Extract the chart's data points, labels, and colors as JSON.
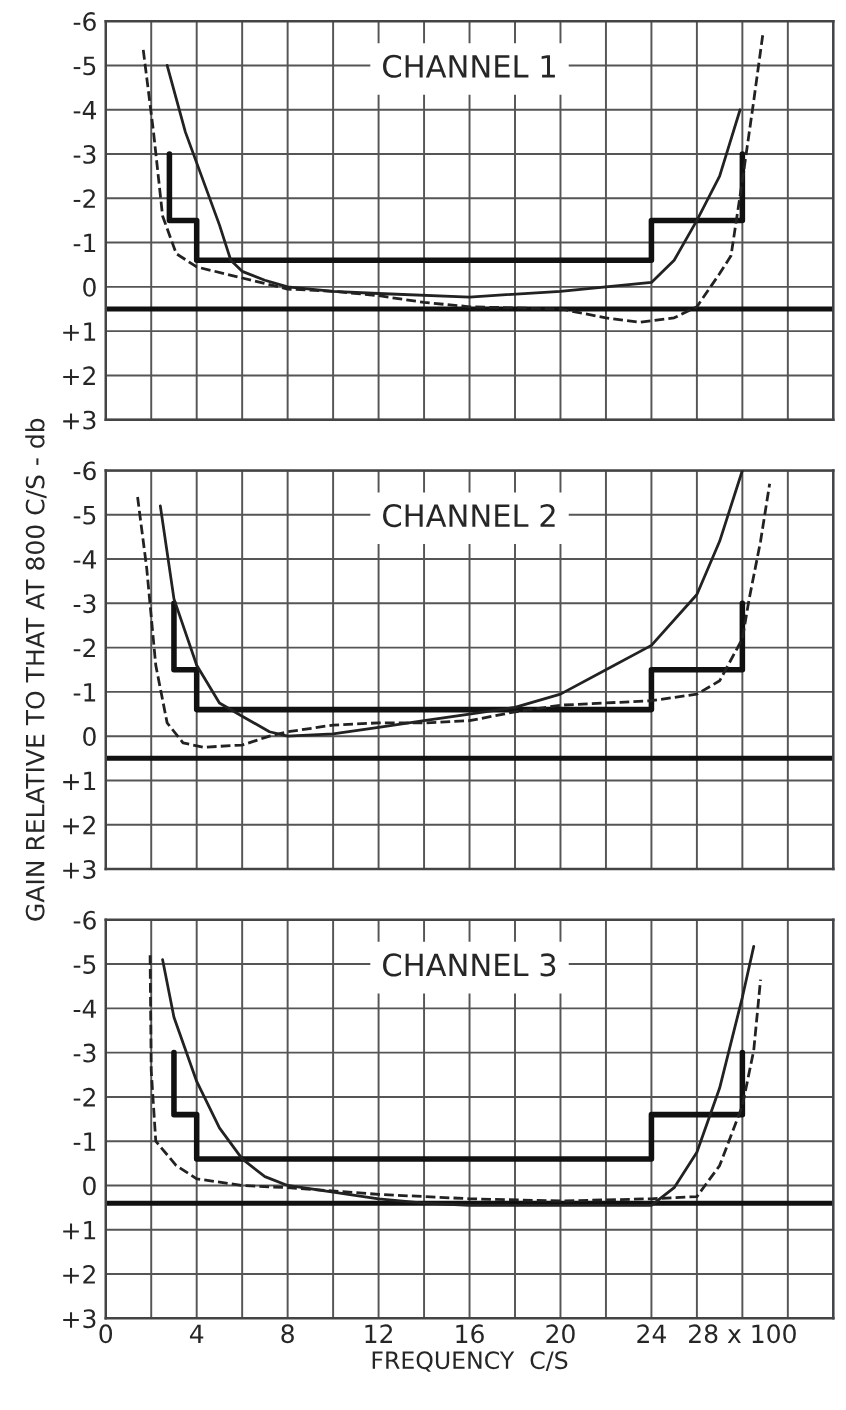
{
  "chart_data": [
    {
      "type": "line",
      "title": "CHANNEL 1",
      "xlim": [
        0,
        32
      ],
      "ylim": [
        3,
        -6
      ],
      "xticks": [
        {
          "value": 0,
          "label": null
        },
        {
          "value": 2,
          "label": null
        },
        {
          "value": 4,
          "label": null
        },
        {
          "value": 6,
          "label": null
        },
        {
          "value": 8,
          "label": null
        },
        {
          "value": 10,
          "label": null
        },
        {
          "value": 12,
          "label": null
        },
        {
          "value": 14,
          "label": null
        },
        {
          "value": 16,
          "label": null
        },
        {
          "value": 18,
          "label": null
        },
        {
          "value": 20,
          "label": null
        },
        {
          "value": 22,
          "label": null
        },
        {
          "value": 24,
          "label": null
        },
        {
          "value": 26,
          "label": null
        },
        {
          "value": 28,
          "label": null
        },
        {
          "value": 30,
          "label": null
        },
        {
          "value": 32,
          "label": null
        }
      ],
      "yticks": [
        -6,
        -5,
        -4,
        -3,
        -2,
        -1,
        0,
        {
          "value": 1,
          "label": "+1"
        },
        {
          "value": 2,
          "label": "+2"
        },
        {
          "value": 3,
          "label": "+3"
        }
      ],
      "grid": true,
      "tick_labels": "y",
      "ref_lines": [
        {
          "axis": "y",
          "value": 0.5,
          "color": "#111111"
        }
      ],
      "series": [
        {
          "type": "step",
          "color": "#111111",
          "line_style": "solid",
          "x": [
            2.8,
            2.8,
            4,
            24,
            28
          ],
          "values": [
            -3,
            -1.5,
            -0.6,
            -1.5,
            -3
          ]
        },
        {
          "color": "#222222",
          "line_style": "solid",
          "x": [
            2.7,
            3.5,
            4,
            5,
            5.5,
            6,
            7,
            8,
            10,
            12,
            16,
            20,
            22,
            24,
            25,
            26,
            27,
            27.9
          ],
          "values": [
            -5,
            -3.5,
            -2.8,
            -1.4,
            -0.6,
            -0.35,
            -0.15,
            0,
            0.1,
            0.15,
            0.23,
            0.1,
            0,
            -0.1,
            -0.6,
            -1.5,
            -2.5,
            -4
          ]
        },
        {
          "color": "#222222",
          "line_style": "dashed",
          "x": [
            1.65,
            2.1,
            2.5,
            3.1,
            4,
            6,
            8,
            10,
            12,
            14,
            16,
            20,
            22,
            23.5,
            25,
            26,
            27,
            27.5,
            28,
            28.5,
            28.9
          ],
          "values": [
            -5.35,
            -3.5,
            -1.6,
            -0.75,
            -0.45,
            -0.2,
            0.05,
            0.1,
            0.2,
            0.35,
            0.45,
            0.5,
            0.7,
            0.8,
            0.7,
            0.45,
            -0.3,
            -0.7,
            -2.4,
            -4.2,
            -5.7
          ]
        }
      ]
    },
    {
      "type": "line",
      "title": "CHANNEL 2",
      "ylabel": "GAIN RELATIVE TO THAT AT 800 C/S - db",
      "xlim": [
        0,
        32
      ],
      "ylim": [
        3,
        -6
      ],
      "xticks": [
        {
          "value": 0,
          "label": null
        },
        {
          "value": 2,
          "label": null
        },
        {
          "value": 4,
          "label": null
        },
        {
          "value": 6,
          "label": null
        },
        {
          "value": 8,
          "label": null
        },
        {
          "value": 10,
          "label": null
        },
        {
          "value": 12,
          "label": null
        },
        {
          "value": 14,
          "label": null
        },
        {
          "value": 16,
          "label": null
        },
        {
          "value": 18,
          "label": null
        },
        {
          "value": 20,
          "label": null
        },
        {
          "value": 22,
          "label": null
        },
        {
          "value": 24,
          "label": null
        },
        {
          "value": 26,
          "label": null
        },
        {
          "value": 28,
          "label": null
        },
        {
          "value": 30,
          "label": null
        },
        {
          "value": 32,
          "label": null
        }
      ],
      "yticks": [
        -6,
        -5,
        -4,
        -3,
        -2,
        -1,
        0,
        {
          "value": 1,
          "label": "+1"
        },
        {
          "value": 2,
          "label": "+2"
        },
        {
          "value": 3,
          "label": "+3"
        }
      ],
      "grid": true,
      "tick_labels": "y",
      "ref_lines": [
        {
          "axis": "y",
          "value": 0.5,
          "color": "#111111"
        }
      ],
      "series": [
        {
          "type": "step",
          "color": "#111111",
          "line_style": "solid",
          "x": [
            3,
            3,
            4,
            24,
            28
          ],
          "values": [
            -3,
            -1.5,
            -0.6,
            -1.5,
            -3
          ]
        },
        {
          "color": "#222222",
          "line_style": "solid",
          "x": [
            2.4,
            3,
            4,
            5,
            6,
            7.2,
            8,
            10,
            12,
            14,
            16,
            18,
            20,
            22,
            24,
            26,
            27,
            28
          ],
          "values": [
            -5.2,
            -3.1,
            -1.6,
            -0.75,
            -0.45,
            -0.1,
            0,
            -0.05,
            -0.2,
            -0.35,
            -0.5,
            -0.65,
            -0.95,
            -1.5,
            -2.05,
            -3.2,
            -4.4,
            -6
          ]
        },
        {
          "color": "#222222",
          "line_style": "dashed",
          "x": [
            1.4,
            1.8,
            2.2,
            2.7,
            3.4,
            4.3,
            6,
            7.2,
            8,
            10,
            12,
            14,
            16,
            18,
            20,
            22,
            24,
            26,
            27,
            28,
            28.3,
            28.8,
            29.2
          ],
          "values": [
            -5.4,
            -3.8,
            -1.6,
            -0.3,
            0.15,
            0.25,
            0.2,
            0,
            -0.1,
            -0.25,
            -0.3,
            -0.3,
            -0.35,
            -0.55,
            -0.7,
            -0.75,
            -0.8,
            -0.95,
            -1.25,
            -2.2,
            -3.1,
            -4.4,
            -5.7
          ]
        }
      ]
    },
    {
      "type": "line",
      "title": "CHANNEL 3",
      "xlabel": "FREQUENCY  C/S",
      "xlim": [
        0,
        32
      ],
      "ylim": [
        3,
        -6
      ],
      "xticks": [
        0,
        {
          "value": 2,
          "label": null
        },
        4,
        {
          "value": 6,
          "label": null
        },
        8,
        {
          "value": 10,
          "label": null
        },
        12,
        {
          "value": 14,
          "label": null
        },
        16,
        {
          "value": 18,
          "label": null
        },
        20,
        {
          "value": 22,
          "label": null
        },
        24,
        {
          "value": 26,
          "label": null
        },
        {
          "value": 28,
          "label": "28 x 100"
        },
        {
          "value": 30,
          "label": null
        },
        {
          "value": 32,
          "label": null
        }
      ],
      "yticks": [
        -6,
        -5,
        -4,
        -3,
        -2,
        -1,
        0,
        {
          "value": 1,
          "label": "+1"
        },
        {
          "value": 2,
          "label": "+2"
        },
        {
          "value": 3,
          "label": "+3"
        }
      ],
      "grid": true,
      "ref_lines": [
        {
          "axis": "y",
          "value": 0.4,
          "color": "#111111"
        }
      ],
      "series": [
        {
          "type": "step",
          "color": "#111111",
          "line_style": "solid",
          "x": [
            3,
            3,
            4,
            24,
            28
          ],
          "values": [
            -3,
            -1.6,
            -0.6,
            -1.6,
            -3
          ]
        },
        {
          "color": "#222222",
          "line_style": "solid",
          "x": [
            2.5,
            3,
            4,
            5,
            6,
            7,
            8,
            10,
            12,
            14,
            16,
            20,
            24,
            25,
            26,
            27,
            28,
            28.5
          ],
          "values": [
            -5.1,
            -3.8,
            -2.35,
            -1.3,
            -0.6,
            -0.2,
            0,
            0.15,
            0.3,
            0.4,
            0.45,
            0.45,
            0.45,
            0.05,
            -0.75,
            -2.2,
            -4.25,
            -5.4
          ]
        },
        {
          "color": "#222222",
          "line_style": "dashed",
          "x": [
            1.95,
            2,
            2.2,
            3.1,
            4,
            6,
            8,
            12,
            16,
            20,
            24,
            26,
            27,
            28,
            28.5,
            28.8
          ],
          "values": [
            -5.2,
            -2.6,
            -1,
            -0.45,
            -0.15,
            0,
            0.05,
            0.2,
            0.3,
            0.35,
            0.3,
            0.25,
            -0.45,
            -1.8,
            -3.05,
            -4.65
          ]
        }
      ]
    }
  ]
}
